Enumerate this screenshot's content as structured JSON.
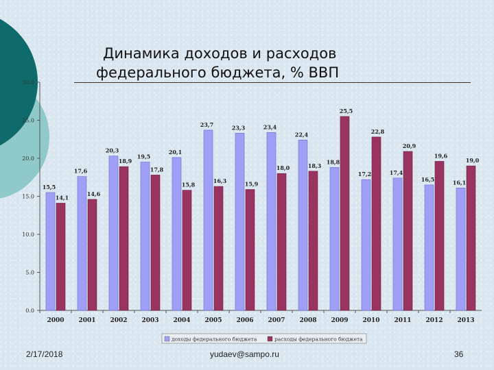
{
  "slide": {
    "title_line1": "Динамика доходов и расходов",
    "title_line2": "федерального бюджета, % ВВП",
    "footer_date": "2/17/2018",
    "footer_email": "yudaev@sampo.ru",
    "footer_page": "36"
  },
  "colors": {
    "income": "#9f9ff5",
    "expense": "#99335f",
    "deco_dark": "#0f6b6b",
    "deco_light": "#8fc9c9"
  },
  "chart_data": {
    "type": "bar",
    "title": "Динамика доходов и расходов федерального бюджета, % ВВП",
    "categories": [
      "2000",
      "2001",
      "2002",
      "2003",
      "2004",
      "2005",
      "2006",
      "2007",
      "2008",
      "2009",
      "2010",
      "2011",
      "2012",
      "2013"
    ],
    "series": [
      {
        "name": "доходы федерального бюджета",
        "values": [
          15.5,
          17.6,
          20.3,
          19.5,
          20.1,
          23.7,
          23.3,
          23.4,
          22.4,
          18.8,
          17.2,
          17.4,
          16.5,
          16.1
        ],
        "labels": [
          "15,5",
          "17,6",
          "20,3",
          "19,5",
          "20,1",
          "23,7",
          "23,3",
          "23,4",
          "22,4",
          "18,8",
          "17,2",
          "17,4",
          "16,5",
          "16,1"
        ]
      },
      {
        "name": "расходы федерального бюджета",
        "values": [
          14.1,
          14.6,
          18.9,
          17.8,
          15.8,
          16.3,
          15.9,
          18.0,
          18.3,
          25.5,
          22.8,
          20.9,
          19.6,
          19.0
        ],
        "labels": [
          "14,1",
          "14,6",
          "18,9",
          "17,8",
          "15,8",
          "16,3",
          "15,9",
          "18,0",
          "18,3",
          "25,5",
          "22,8",
          "20,9",
          "19,6",
          "19,0"
        ]
      }
    ],
    "yticks": [
      "0.0",
      "5.0",
      "10.0",
      "15.0",
      "20.0",
      "25.0",
      "30.0"
    ],
    "ylim": [
      0,
      30
    ],
    "xlabel": "",
    "ylabel": "",
    "grid": false,
    "legend": "bottom"
  }
}
